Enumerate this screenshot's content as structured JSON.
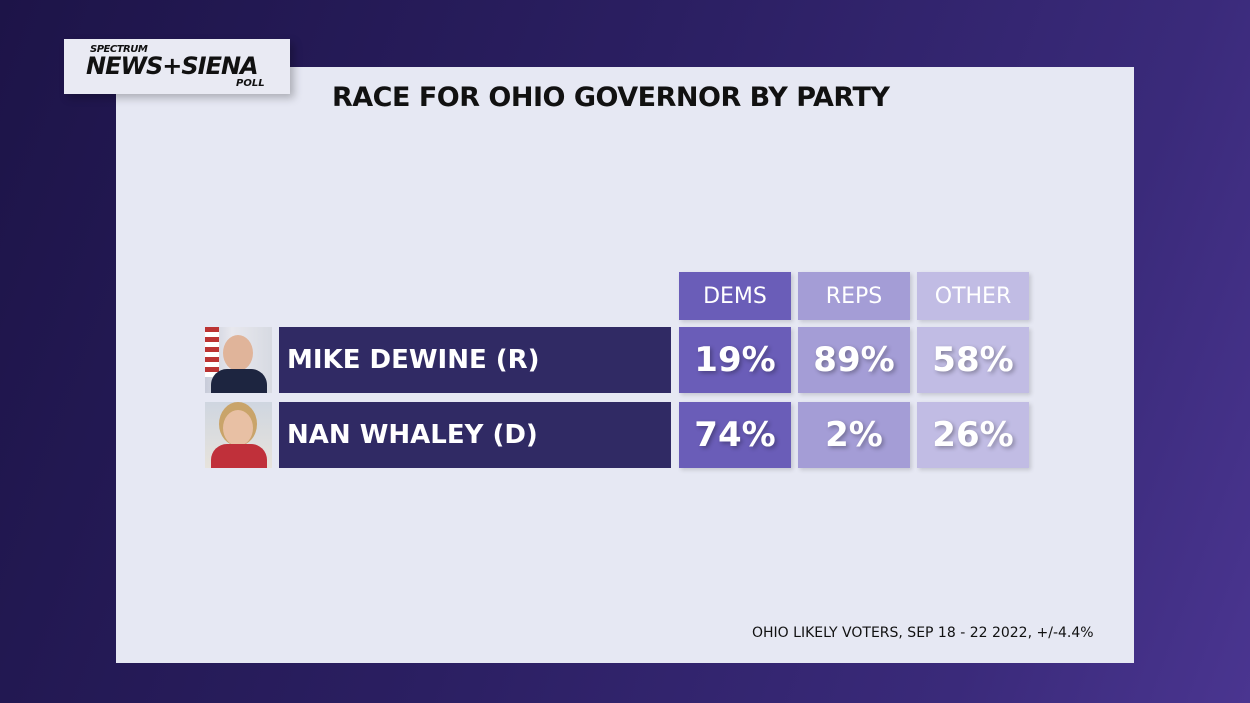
{
  "logo": {
    "line1": "SPECTRUM",
    "line2": "NEWS+SIENA",
    "line3": "POLL"
  },
  "chart_data": {
    "type": "table",
    "title": "RACE FOR OHIO GOVERNOR BY PARTY",
    "columns": [
      "DEMS",
      "REPS",
      "OTHER"
    ],
    "rows": [
      {
        "name": "MIKE DEWINE (R)",
        "values": [
          "19%",
          "89%",
          "58%"
        ]
      },
      {
        "name": "NAN WHALEY (D)",
        "values": [
          "74%",
          "2%",
          "26%"
        ]
      }
    ],
    "footnote": "OHIO LIKELY VOTERS, SEP 18 - 22 2022, +/-4.4%"
  },
  "colors": {
    "dems": "#6a5db8",
    "reps": "#a49dd6",
    "other": "#c1bce4",
    "name_bar": "#302a64"
  }
}
